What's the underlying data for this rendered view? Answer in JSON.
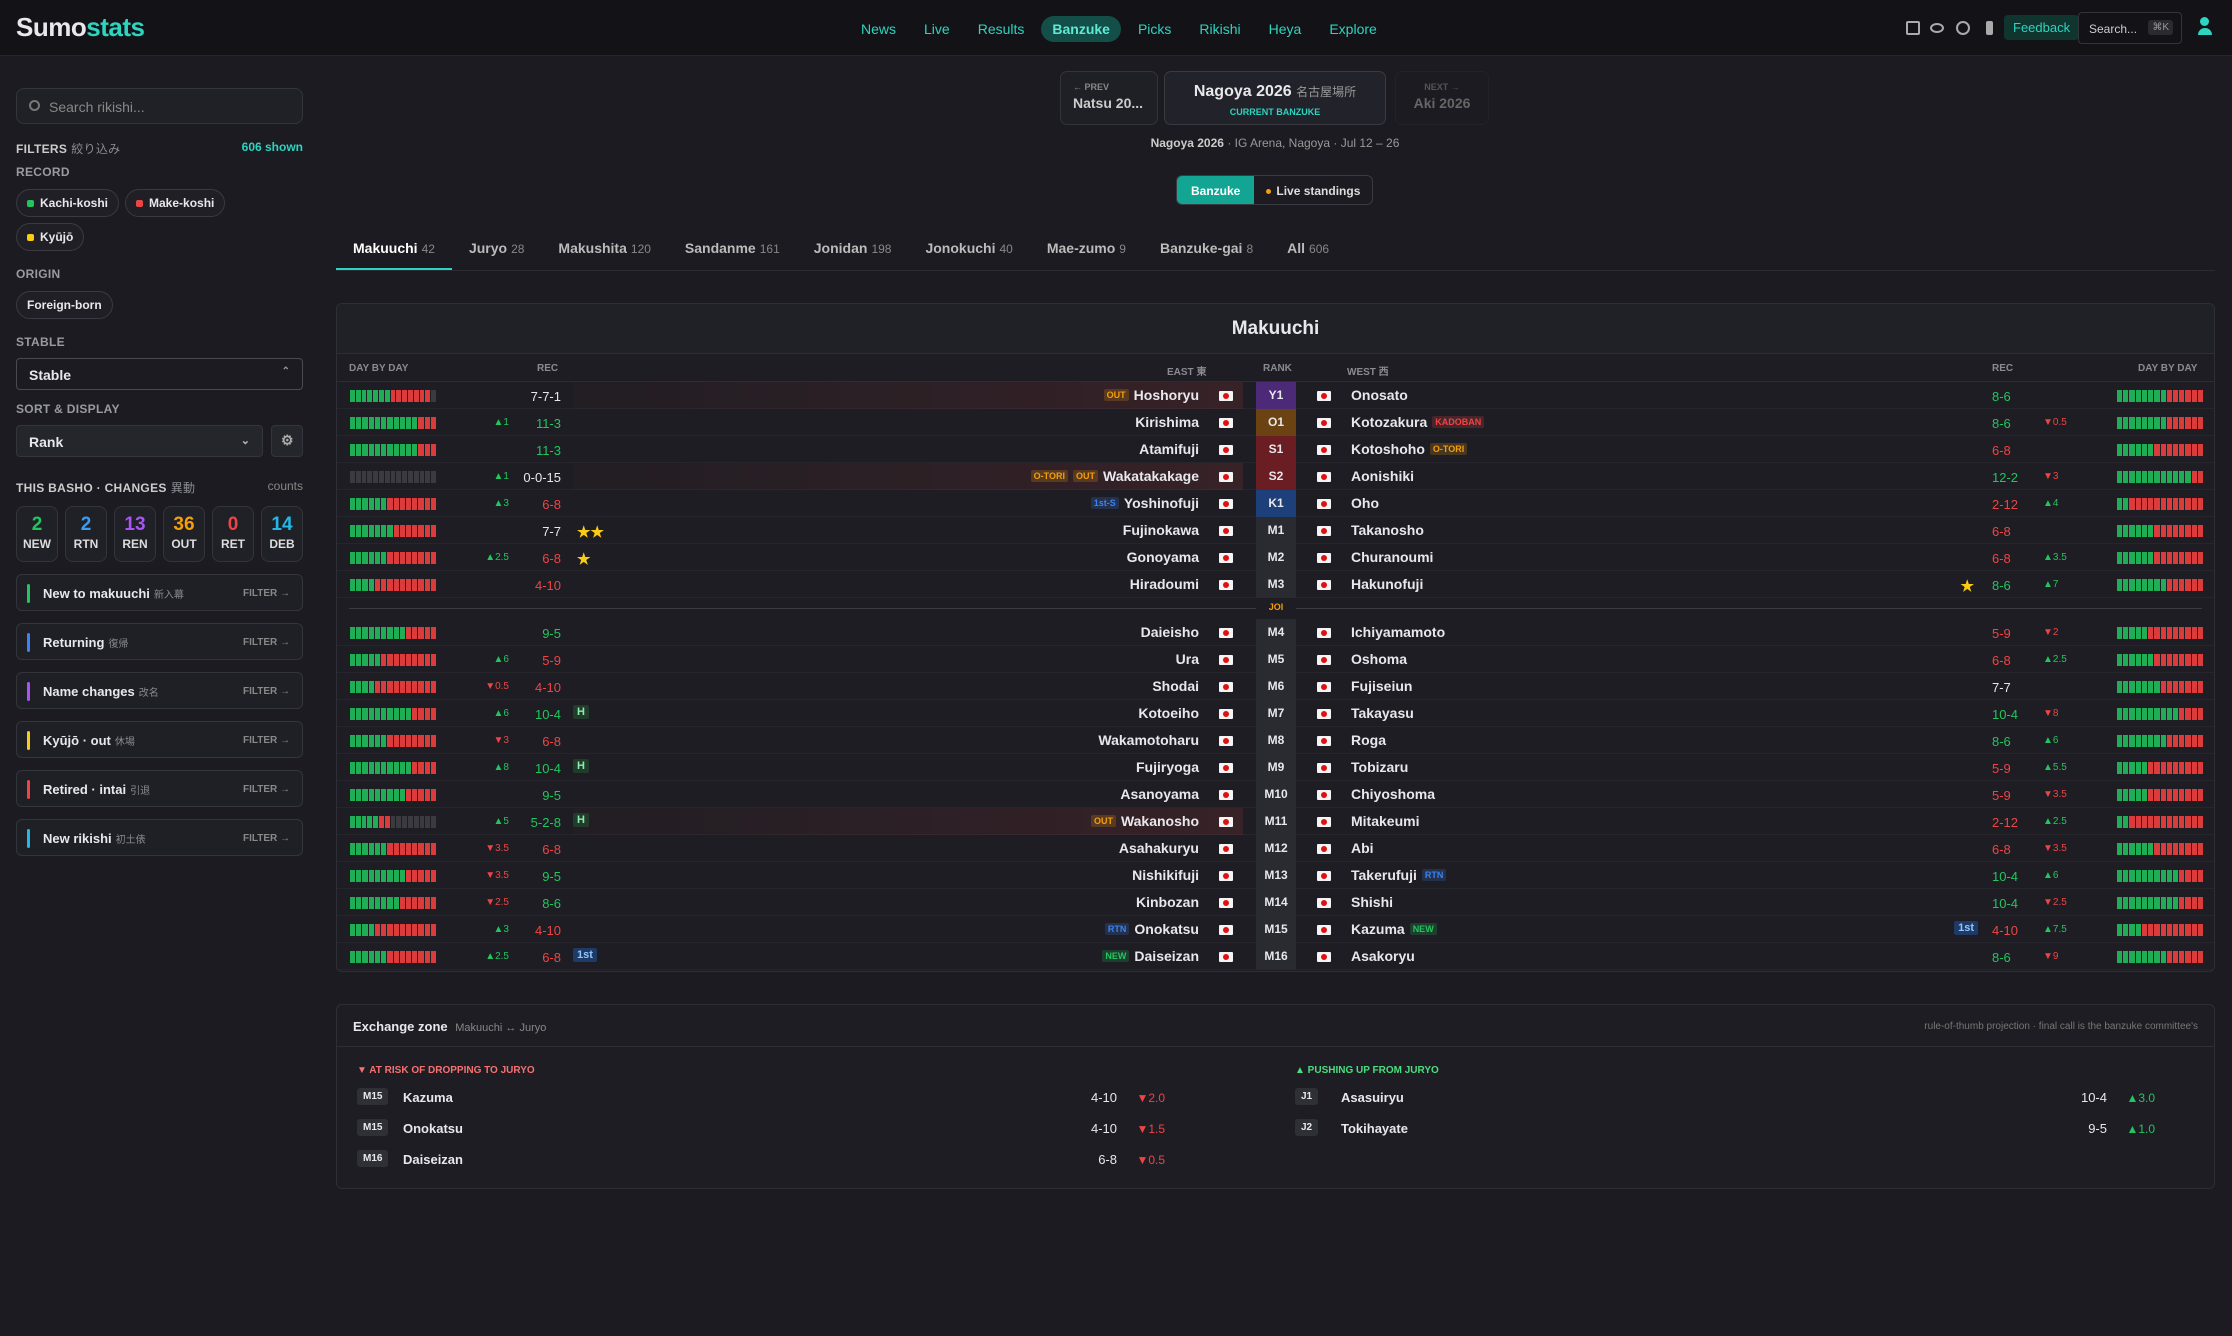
{
  "header": {
    "logo_main": "Sumo",
    "logo_accent": "stats",
    "nav": [
      "News",
      "Live",
      "Results",
      "Banzuke",
      "Picks",
      "Rikishi",
      "Heya",
      "Explore"
    ],
    "feedback": "Feedback",
    "search": "Search...",
    "search_key": "⌘K"
  },
  "sidebar": {
    "search_placeholder": "Search rikishi...",
    "filters": "FILTERS",
    "filters_jp": "絞り込み",
    "shown": "606 shown",
    "record_label": "RECORD",
    "record_chips": [
      {
        "label": "Kachi-koshi",
        "color": "#22c55e"
      },
      {
        "label": "Make-koshi",
        "color": "#ef4444"
      },
      {
        "label": "Kyūjō",
        "color": "#facc15"
      }
    ],
    "origin_label": "ORIGIN",
    "origin_chip": "Foreign-born",
    "stable_label": "STABLE",
    "stable_value": "Stable",
    "sort_label": "SORT & DISPLAY",
    "sort_value": "Rank",
    "changes_label": "THIS BASHO · CHANGES",
    "changes_jp": "異動",
    "counts": "counts",
    "stats": [
      {
        "value": 2,
        "label": "NEW",
        "color": "#22c55e"
      },
      {
        "value": 2,
        "label": "RTN",
        "color": "#3b9cf5"
      },
      {
        "value": 13,
        "label": "REN",
        "color": "#a855f7"
      },
      {
        "value": 36,
        "label": "OUT",
        "color": "#f59e0b"
      },
      {
        "value": 0,
        "label": "RET",
        "color": "#ef4444"
      },
      {
        "value": 14,
        "label": "DEB",
        "color": "#22b8e8"
      }
    ],
    "filter_items": [
      {
        "label": "New to makuuchi",
        "jp": "新入幕",
        "color": "#22c55e"
      },
      {
        "label": "Returning",
        "jp": "復帰",
        "color": "#3b82f6"
      },
      {
        "label": "Name changes",
        "jp": "改名",
        "color": "#a855f7"
      },
      {
        "label": "Kyūjō · out",
        "jp": "休場",
        "color": "#facc15"
      },
      {
        "label": "Retired · intai",
        "jp": "引退",
        "color": "#ef4444"
      },
      {
        "label": "New rikishi",
        "jp": "初土俵",
        "color": "#22b8e8"
      }
    ],
    "filter_action": "FILTER →"
  },
  "basho": {
    "prev_label": "← PREV",
    "prev": "Natsu 20...",
    "current": "Nagoya 2026",
    "current_jp": "名古屋場所",
    "current_tag": "CURRENT BANZUKE",
    "next_label": "NEXT →",
    "next": "Aki 2026",
    "subtitle_strong": "Nagoya 2026",
    "subtitle": "· IG Arena, Nagoya · Jul 12 – 26",
    "toggle": [
      "Banzuke",
      "Live standings"
    ]
  },
  "tabs": [
    {
      "name": "Makuuchi",
      "count": 42
    },
    {
      "name": "Juryo",
      "count": 28
    },
    {
      "name": "Makushita",
      "count": 120
    },
    {
      "name": "Sandanme",
      "count": 161
    },
    {
      "name": "Jonidan",
      "count": 198
    },
    {
      "name": "Jonokuchi",
      "count": 40
    },
    {
      "name": "Mae-zumo",
      "count": 9
    },
    {
      "name": "Banzuke-gai",
      "count": 8
    },
    {
      "name": "All",
      "count": 606
    }
  ],
  "table": {
    "title": "Makuuchi",
    "headers": {
      "day_east": "DAY BY DAY",
      "rec_east": "REC",
      "east": "EAST 東",
      "rank": "RANK",
      "west": "WEST 西",
      "rec_west": "REC",
      "day_west": "DAY BY DAY"
    },
    "joi": "JOI",
    "joi_after": 8,
    "rows": [
      {
        "rank": "Y1",
        "rank_color": "#4c2a78",
        "east": {
          "name": "Hoshoryu",
          "record": "7-7-1",
          "badges": [
            {
              "label": "OUT",
              "color": "#f59e0b"
            }
          ],
          "highlight": true
        },
        "west": {
          "name": "Onosato",
          "record": "8-6"
        }
      },
      {
        "rank": "O1",
        "rank_color": "#6b4312",
        "east": {
          "name": "Kirishima",
          "record": "11-3",
          "change": "▲1"
        },
        "west": {
          "name": "Kotozakura",
          "record": "8-6",
          "change": "▼0.5",
          "badges": [
            {
              "label": "KADOBAN",
              "color": "#ef4444"
            }
          ]
        }
      },
      {
        "rank": "S1",
        "rank_color": "#6b1d24",
        "east": {
          "name": "Atamifuji",
          "record": "11-3"
        },
        "west": {
          "name": "Kotoshoho",
          "record": "6-8",
          "badges": [
            {
              "label": "O-TORI",
              "color": "#f59e0b"
            }
          ]
        }
      },
      {
        "rank": "S2",
        "rank_color": "#6b1d24",
        "east": {
          "name": "Wakatakakage",
          "record": "0-0-15",
          "change": "▲1",
          "badges": [
            {
              "label": "O-TORI",
              "color": "#f59e0b"
            },
            {
              "label": "OUT",
              "color": "#f59e0b"
            }
          ],
          "highlight": true
        },
        "west": {
          "name": "Aonishiki",
          "record": "12-2",
          "change": "▼3"
        }
      },
      {
        "rank": "K1",
        "rank_color": "#1d3f7a",
        "east": {
          "name": "Yoshinofuji",
          "record": "6-8",
          "change": "▲3",
          "badges": [
            {
              "label": "1st-S",
              "color": "#3b82f6"
            }
          ]
        },
        "west": {
          "name": "Oho",
          "record": "2-12",
          "change": "▲4"
        }
      },
      {
        "rank": "M1",
        "rank_color": "#2a2a31",
        "east": {
          "name": "Fujinokawa",
          "record": "7-7",
          "icons": [
            {
              "label": "★★",
              "color": "#facc15"
            }
          ]
        },
        "west": {
          "name": "Takanosho",
          "record": "6-8"
        }
      },
      {
        "rank": "M2",
        "rank_color": "#2a2a31",
        "east": {
          "name": "Gonoyama",
          "record": "6-8",
          "change": "▲2.5",
          "icons": [
            {
              "label": "★",
              "color": "#facc15"
            }
          ]
        },
        "west": {
          "name": "Churanoumi",
          "record": "6-8",
          "change": "▲3.5"
        }
      },
      {
        "rank": "M3",
        "rank_color": "#2a2a31",
        "east": {
          "name": "Hiradoumi",
          "record": "4-10"
        },
        "west": {
          "name": "Hakunofuji",
          "record": "8-6",
          "change": "▲7",
          "icons": [
            {
              "label": "★",
              "color": "#facc15"
            }
          ]
        }
      },
      {
        "rank": "M4",
        "rank_color": "#2a2a31",
        "east": {
          "name": "Daieisho",
          "record": "9-5"
        },
        "west": {
          "name": "Ichiyamamoto",
          "record": "5-9",
          "change": "▼2"
        }
      },
      {
        "rank": "M5",
        "rank_color": "#2a2a31",
        "east": {
          "name": "Ura",
          "record": "5-9",
          "change": "▲6"
        },
        "west": {
          "name": "Oshoma",
          "record": "6-8",
          "change": "▲2.5"
        }
      },
      {
        "rank": "M6",
        "rank_color": "#2a2a31",
        "east": {
          "name": "Shodai",
          "record": "4-10",
          "change": "▼0.5"
        },
        "west": {
          "name": "Fujiseiun",
          "record": "7-7"
        }
      },
      {
        "rank": "M7",
        "rank_color": "#2a2a31",
        "east": {
          "name": "Kotoeiho",
          "record": "10-4",
          "change": "▲6",
          "icons": [
            {
              "label": "H",
              "color": "#86efac",
              "bg": "#233b2a"
            }
          ]
        },
        "west": {
          "name": "Takayasu",
          "record": "10-4",
          "change": "▼8"
        }
      },
      {
        "rank": "M8",
        "rank_color": "#2a2a31",
        "east": {
          "name": "Wakamotoharu",
          "record": "6-8",
          "change": "▼3"
        },
        "west": {
          "name": "Roga",
          "record": "8-6",
          "change": "▲6"
        }
      },
      {
        "rank": "M9",
        "rank_color": "#2a2a31",
        "east": {
          "name": "Fujiryoga",
          "record": "10-4",
          "change": "▲8",
          "icons": [
            {
              "label": "H",
              "color": "#86efac",
              "bg": "#233b2a"
            }
          ]
        },
        "west": {
          "name": "Tobizaru",
          "record": "5-9",
          "change": "▲5.5"
        }
      },
      {
        "rank": "M10",
        "rank_color": "#2a2a31",
        "east": {
          "name": "Asanoyama",
          "record": "9-5"
        },
        "west": {
          "name": "Chiyoshoma",
          "record": "5-9",
          "change": "▼3.5"
        }
      },
      {
        "rank": "M11",
        "rank_color": "#2a2a31",
        "east": {
          "name": "Wakanosho",
          "record": "5-2-8",
          "change": "▲5",
          "icons": [
            {
              "label": "H",
              "color": "#86efac",
              "bg": "#233b2a"
            }
          ],
          "badges": [
            {
              "label": "OUT",
              "color": "#f59e0b"
            }
          ],
          "highlight": true
        },
        "west": {
          "name": "Mitakeumi",
          "record": "2-12",
          "change": "▲2.5"
        }
      },
      {
        "rank": "M12",
        "rank_color": "#2a2a31",
        "east": {
          "name": "Asahakuryu",
          "record": "6-8",
          "change": "▼3.5"
        },
        "west": {
          "name": "Abi",
          "record": "6-8",
          "change": "▼3.5"
        }
      },
      {
        "rank": "M13",
        "rank_color": "#2a2a31",
        "east": {
          "name": "Nishikifuji",
          "record": "9-5",
          "change": "▼3.5"
        },
        "west": {
          "name": "Takerufuji",
          "record": "10-4",
          "change": "▲6",
          "badges": [
            {
              "label": "RTN",
              "color": "#3b82f6"
            }
          ]
        }
      },
      {
        "rank": "M14",
        "rank_color": "#2a2a31",
        "east": {
          "name": "Kinbozan",
          "record": "8-6",
          "change": "▼2.5"
        },
        "west": {
          "name": "Shishi",
          "record": "10-4",
          "change": "▼2.5"
        }
      },
      {
        "rank": "M15",
        "rank_color": "#2a2a31",
        "east": {
          "name": "Onokatsu",
          "record": "4-10",
          "change": "▲3",
          "badges": [
            {
              "label": "RTN",
              "color": "#3b82f6"
            }
          ]
        },
        "west": {
          "name": "Kazuma",
          "record": "4-10",
          "change": "▲7.5",
          "badges": [
            {
              "label": "NEW",
              "color": "#22c55e"
            }
          ],
          "icons": [
            {
              "label": "1st",
              "color": "#93c5fd",
              "bg": "#1e3a66"
            }
          ]
        }
      },
      {
        "rank": "M16",
        "rank_color": "#2a2a31",
        "east": {
          "name": "Daiseizan",
          "record": "6-8",
          "change": "▲2.5",
          "badges": [
            {
              "label": "NEW",
              "color": "#22c55e"
            }
          ],
          "icons": [
            {
              "label": "1st",
              "color": "#93c5fd",
              "bg": "#1e3a66"
            }
          ]
        },
        "west": {
          "name": "Asakoryu",
          "record": "8-6",
          "change": "▼9"
        }
      }
    ]
  },
  "exchange": {
    "title": "Exchange zone",
    "subtitle": "Makuuchi ↔ Juryo",
    "note": "rule-of-thumb projection · final call is the banzuke committee's",
    "down_label": "▼ AT RISK OF DROPPING TO JURYO",
    "up_label": "▲ PUSHING UP FROM JURYO",
    "down": [
      {
        "rank": "M15",
        "name": "Kazuma",
        "record": "4-10",
        "change": "▼2.0"
      },
      {
        "rank": "M15",
        "name": "Onokatsu",
        "record": "4-10",
        "change": "▼1.5"
      },
      {
        "rank": "M16",
        "name": "Daiseizan",
        "record": "6-8",
        "change": "▼0.5"
      }
    ],
    "up": [
      {
        "rank": "J1",
        "name": "Asasuiryu",
        "record": "10-4",
        "change": "▲3.0"
      },
      {
        "rank": "J2",
        "name": "Tokihayate",
        "record": "9-5",
        "change": "▲1.0"
      }
    ]
  }
}
